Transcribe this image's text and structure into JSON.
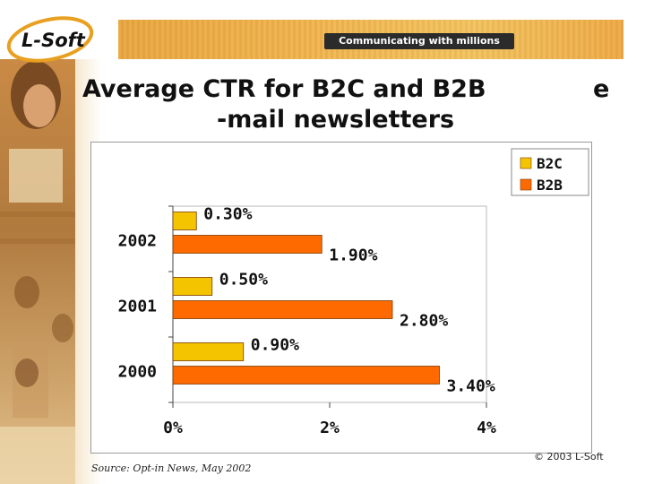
{
  "header": {
    "logo_text": "L-Soft",
    "tagline": "Communicating with millions"
  },
  "slide": {
    "title_line1": "Average CTR for B2C and B2B",
    "title_e": "e",
    "title_line2": "-mail newsletters",
    "source": "Source: Opt-in News, May 2002",
    "copyright": "© 2003 L-Soft"
  },
  "colors": {
    "b2c": "#f5c400",
    "b2b": "#ff6a00",
    "bar_stroke": "#7a3a00",
    "header_band": "#eeaa44"
  },
  "chart_data": {
    "type": "bar",
    "orientation": "horizontal",
    "categories": [
      "2002",
      "2001",
      "2000"
    ],
    "series": [
      {
        "name": "B2C",
        "values": [
          0.3,
          0.5,
          0.9
        ],
        "labels": [
          "0.30%",
          "0.50%",
          "0.90%"
        ]
      },
      {
        "name": "B2B",
        "values": [
          1.9,
          2.8,
          3.4
        ],
        "labels": [
          "1.90%",
          "2.80%",
          "3.40%"
        ]
      }
    ],
    "xlim": [
      0,
      4
    ],
    "x_ticks": [
      0,
      2,
      4
    ],
    "x_tick_labels": [
      "0%",
      "2%",
      "4%"
    ],
    "legend_placement": "top-right",
    "grid": false
  }
}
